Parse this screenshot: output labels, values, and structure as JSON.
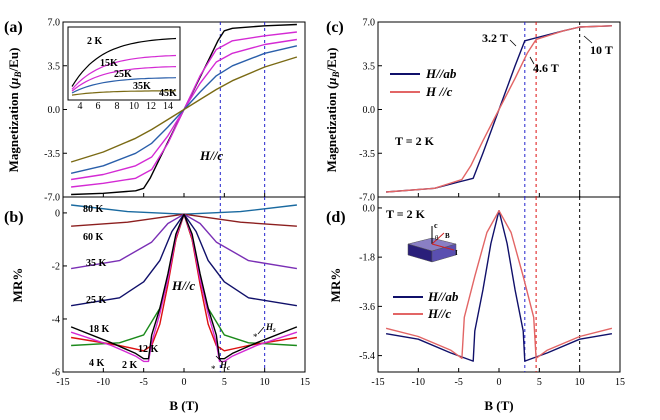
{
  "colors": {
    "black": "#000000",
    "magenta": "#d42ad4",
    "blue": "#2a5faa",
    "olive": "#7a6a14",
    "navy": "#10106a",
    "salmon": "#e26565",
    "darkred": "#8c1f1f",
    "purple": "#7a2fb5",
    "green": "#1b8a1b",
    "red": "#dd1111",
    "teal": "#1a6aa0",
    "dash_blue": "#2222cc"
  },
  "shared": {
    "xlabel": "B (T)",
    "xticks": [
      "-15",
      "-10",
      "-5",
      "0",
      "5",
      "10",
      "15"
    ]
  },
  "panels": {
    "a": {
      "label": "(a)",
      "ylabel_prefix": "Magnetization (",
      "ylabel_mu": "μ",
      "ylabel_sub": "B",
      "ylabel_suffix": "/Eu)",
      "yticks": [
        "-7.0",
        "-3.5",
        "0.0",
        "3.5",
        "7.0"
      ],
      "annotation": "H//c",
      "inset": {
        "xticks": [
          "4",
          "6",
          "8",
          "10",
          "12",
          "14"
        ],
        "labels": [
          "2 K",
          "15K",
          "25K",
          "35K",
          "45K"
        ]
      }
    },
    "b": {
      "label": "(b)",
      "ylabel": "MR%",
      "yticks": [
        "-6",
        "-4",
        "-2",
        "0"
      ],
      "annotation": "H//c",
      "temps": [
        "80 K",
        "60 K",
        "35 K",
        "25 K",
        "18 K",
        "12 K",
        "4 K",
        "2 K"
      ],
      "hs": "H",
      "hs_sub": "s",
      "hc": "H",
      "hc_sub": "c"
    },
    "c": {
      "label": "(c)",
      "ylabel_prefix": "Magnetization (",
      "ylabel_mu": "μ",
      "ylabel_sub": "B",
      "ylabel_suffix": "/Eu)",
      "yticks": [
        "-7.0",
        "-3.5",
        "0.0",
        "3.5",
        "7.0"
      ],
      "temp": "T = 2 K",
      "fields": [
        "3.2 T",
        "4.6 T",
        "10 T"
      ],
      "legend": [
        "H//ab",
        "H //c"
      ]
    },
    "d": {
      "label": "(d)",
      "ylabel": "MR%",
      "yticks": [
        "-5.4",
        "-3.6",
        "-1.8",
        "0.0"
      ],
      "temp": "T = 2 K",
      "legend": [
        "H//ab",
        "H//c"
      ],
      "crystal_labels": [
        "c",
        "θ",
        "B",
        "I"
      ]
    }
  },
  "chart_data": [
    {
      "type": "line",
      "panel": "a",
      "xlabel": "B (T)",
      "ylabel": "Magnetization (μB/Eu)",
      "xlim": [
        -15,
        15
      ],
      "ylim": [
        -7,
        7
      ],
      "series": [
        {
          "name": "2 K",
          "color": "#000000",
          "x": [
            -14,
            -10,
            -6,
            -5,
            -4.2,
            -3,
            -1,
            0,
            1,
            3,
            4.2,
            5,
            6,
            10,
            14
          ],
          "y": [
            -6.8,
            -6.7,
            -6.5,
            -6.3,
            -5.5,
            -3.9,
            -1.3,
            0,
            1.3,
            3.9,
            5.5,
            6.3,
            6.5,
            6.7,
            6.8
          ]
        },
        {
          "name": "15K",
          "color": "#d42ad4",
          "x": [
            -14,
            -10,
            -6,
            -4,
            -2,
            0,
            2,
            4,
            6,
            10,
            14
          ],
          "y": [
            -6.2,
            -5.9,
            -5.5,
            -4.8,
            -2.7,
            0,
            2.7,
            4.8,
            5.5,
            5.9,
            6.2
          ]
        },
        {
          "name": "25K",
          "color": "#d42ad4",
          "x": [
            -14,
            -10,
            -6,
            -4,
            -2,
            0,
            2,
            4,
            6,
            10,
            14
          ],
          "y": [
            -5.6,
            -5.2,
            -4.5,
            -3.8,
            -2.1,
            0,
            2.1,
            3.8,
            4.5,
            5.2,
            5.6
          ]
        },
        {
          "name": "35K",
          "color": "#2a5faa",
          "x": [
            -14,
            -10,
            -6,
            -4,
            -2,
            0,
            2,
            4,
            6,
            10,
            14
          ],
          "y": [
            -5.1,
            -4.5,
            -3.5,
            -2.7,
            -1.4,
            0,
            1.4,
            2.7,
            3.5,
            4.5,
            5.1
          ]
        },
        {
          "name": "45K",
          "color": "#7a6a14",
          "x": [
            -14,
            -10,
            -6,
            -4,
            -2,
            0,
            2,
            4,
            6,
            10,
            14
          ],
          "y": [
            -4.2,
            -3.4,
            -2.3,
            -1.6,
            -0.8,
            0,
            0.8,
            1.6,
            2.3,
            3.4,
            4.2
          ]
        }
      ],
      "vlines": [
        4.5,
        10
      ]
    },
    {
      "type": "line",
      "panel": "b",
      "xlabel": "B (T)",
      "ylabel": "MR%",
      "xlim": [
        -15,
        15
      ],
      "ylim": [
        -6,
        0.6
      ],
      "series": [
        {
          "name": "80 K",
          "color": "#1a6aa0",
          "x": [
            -14,
            -7,
            0,
            7,
            14
          ],
          "y": [
            0.3,
            0.05,
            -0.05,
            0.05,
            0.3
          ]
        },
        {
          "name": "60 K",
          "color": "#8c1f1f",
          "x": [
            -14,
            -7,
            0,
            7,
            14
          ],
          "y": [
            -0.5,
            -0.35,
            -0.05,
            -0.35,
            -0.5
          ]
        },
        {
          "name": "35 K",
          "color": "#7a2fb5",
          "x": [
            -14,
            -8,
            -4,
            -2,
            0,
            2,
            4,
            8,
            14
          ],
          "y": [
            -2.1,
            -1.8,
            -1.1,
            -0.4,
            -0.05,
            -0.4,
            -1.1,
            -1.8,
            -2.1
          ]
        },
        {
          "name": "25 K",
          "color": "#10106a",
          "x": [
            -14,
            -8,
            -5,
            -3,
            -1.5,
            0,
            1.5,
            3,
            5,
            8,
            14
          ],
          "y": [
            -3.5,
            -3.2,
            -2.6,
            -1.8,
            -0.7,
            -0.05,
            -0.7,
            -1.8,
            -2.6,
            -3.2,
            -3.5
          ]
        },
        {
          "name": "18 K",
          "color": "#1b8a1b",
          "x": [
            -14,
            -8,
            -5,
            -3,
            -2,
            -1,
            0,
            1,
            2,
            3,
            5,
            8,
            14
          ],
          "y": [
            -5.0,
            -4.9,
            -4.6,
            -3.6,
            -2.5,
            -1.0,
            -0.05,
            -1.0,
            -2.5,
            -3.6,
            -4.6,
            -4.9,
            -5.0
          ]
        },
        {
          "name": "12 K",
          "color": "#dd1111",
          "x": [
            -14,
            -8,
            -5,
            -4,
            -3,
            -2,
            -1,
            0,
            1,
            2,
            3,
            4,
            5,
            8,
            14
          ],
          "y": [
            -4.7,
            -5.0,
            -5.2,
            -5.0,
            -4.2,
            -2.7,
            -1.0,
            -0.05,
            -1.0,
            -2.7,
            -4.2,
            -5.0,
            -5.2,
            -5.0,
            -4.7
          ]
        },
        {
          "name": "4 K",
          "color": "#d42ad4",
          "x": [
            -14,
            -9,
            -6,
            -5,
            -4.4,
            -4,
            -3,
            -2,
            -1,
            0,
            1,
            2,
            3,
            4,
            4.4,
            5,
            6,
            9,
            14
          ],
          "y": [
            -4.5,
            -5.0,
            -5.4,
            -5.6,
            -5.6,
            -4.9,
            -3.8,
            -2.5,
            -0.9,
            -0.05,
            -0.9,
            -2.5,
            -3.8,
            -4.9,
            -5.6,
            -5.6,
            -5.4,
            -5.0,
            -4.5
          ]
        },
        {
          "name": "2 K",
          "color": "#000000",
          "x": [
            -14,
            -9,
            -6,
            -5,
            -4.4,
            -4,
            -3,
            -2,
            -1,
            0,
            1,
            2,
            3,
            4,
            4.4,
            5,
            6,
            9,
            14
          ],
          "y": [
            -4.3,
            -4.9,
            -5.3,
            -5.5,
            -5.5,
            -4.6,
            -3.6,
            -2.3,
            -0.8,
            -0.05,
            -0.8,
            -2.3,
            -3.6,
            -4.6,
            -5.5,
            -5.5,
            -5.3,
            -4.9,
            -4.3
          ]
        }
      ],
      "vlines": [
        4.5,
        10
      ]
    },
    {
      "type": "line",
      "panel": "c",
      "xlabel": "B (T)",
      "ylabel": "Magnetization (μB/Eu)",
      "xlim": [
        -15,
        15
      ],
      "ylim": [
        -7,
        7
      ],
      "series": [
        {
          "name": "H//ab",
          "color": "#10106a",
          "x": [
            -14,
            -8,
            -5,
            -3.2,
            -2,
            0,
            2,
            3.2,
            5,
            8,
            10,
            14
          ],
          "y": [
            -6.6,
            -6.3,
            -5.8,
            -5.5,
            -3.5,
            0,
            3.5,
            5.5,
            5.8,
            6.3,
            6.6,
            6.7
          ]
        },
        {
          "name": "H //c",
          "color": "#e26565",
          "x": [
            -14,
            -8,
            -4.6,
            -3.5,
            -2,
            0,
            2,
            3.5,
            4.6,
            8,
            10,
            14
          ],
          "y": [
            -6.6,
            -6.3,
            -5.6,
            -4.5,
            -2.5,
            0,
            2.5,
            4.5,
            5.6,
            6.3,
            6.6,
            6.7
          ]
        }
      ],
      "vlines": [
        3.2,
        4.6,
        10
      ]
    },
    {
      "type": "line",
      "panel": "d",
      "xlabel": "B (T)",
      "ylabel": "MR%",
      "xlim": [
        -15,
        15
      ],
      "ylim": [
        -6.0,
        0.4
      ],
      "series": [
        {
          "name": "H//ab",
          "color": "#10106a",
          "x": [
            -14,
            -10,
            -6,
            -3.2,
            -3,
            -2,
            -1,
            0,
            1,
            2,
            3,
            3.2,
            6,
            10,
            14
          ],
          "y": [
            -4.6,
            -4.8,
            -5.3,
            -5.6,
            -4.5,
            -3.0,
            -1.3,
            -0.1,
            -1.3,
            -3.0,
            -4.5,
            -5.6,
            -5.3,
            -4.8,
            -4.6
          ]
        },
        {
          "name": "H//c",
          "color": "#e26565",
          "x": [
            -14,
            -10,
            -6,
            -4.6,
            -4.3,
            -3,
            -1.5,
            0,
            1.5,
            3,
            4.3,
            4.6,
            6,
            10,
            14
          ],
          "y": [
            -4.4,
            -4.7,
            -5.2,
            -5.5,
            -4.0,
            -2.5,
            -0.9,
            -0.1,
            -0.9,
            -2.5,
            -4.0,
            -5.5,
            -5.2,
            -4.7,
            -4.4
          ]
        }
      ],
      "vlines": [
        3.2,
        4.6,
        10
      ]
    }
  ]
}
